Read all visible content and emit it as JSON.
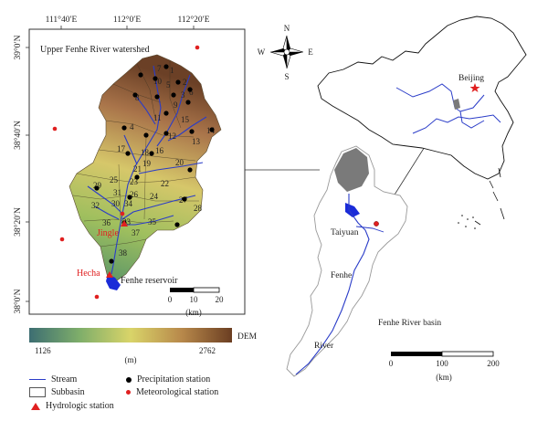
{
  "map": {
    "inset_title": "Upper Fenhe River watershed",
    "lon_ticks": [
      "111°40′E",
      "112°0′E",
      "112°20′E"
    ],
    "lat_ticks": [
      "39°0′N",
      "38°40′N",
      "38°20′N",
      "38°0′N"
    ],
    "subbasin_numbers": [
      "1",
      "2",
      "3",
      "4",
      "5",
      "6",
      "7",
      "8",
      "9",
      "10",
      "11",
      "12",
      "13",
      "14",
      "15",
      "16",
      "17",
      "18",
      "19",
      "20",
      "21",
      "22",
      "23",
      "24",
      "25",
      "26",
      "27",
      "28",
      "29",
      "30",
      "31",
      "32",
      "33",
      "34",
      "35",
      "36",
      "37",
      "38"
    ],
    "station_labels": {
      "jingle": "Jingle",
      "hecha": "Hecha",
      "reservoir": "Fenhe reservoir"
    },
    "scalebar_left": {
      "ticks": [
        "0",
        "10",
        "20"
      ],
      "unit": "(km)"
    },
    "dem": {
      "label": "DEM",
      "min": "1126",
      "max": "2762",
      "unit": "(m)"
    },
    "compass": {
      "n": "N",
      "s": "S",
      "e": "E",
      "w": "W"
    },
    "right_labels": {
      "beijing": "Beijing",
      "taiyuan": "Taiyuan",
      "fenhe": "Fenhe",
      "river": "River",
      "basin": "Fenhe River basin"
    },
    "scalebar_right": {
      "ticks": [
        "0",
        "100",
        "200"
      ],
      "unit": "(km)"
    },
    "colors": {
      "stream": "#2a3cc8",
      "reservoir": "#1a2bd8",
      "precip": "#000000",
      "meteo": "#e02020",
      "hydro": "#e02020",
      "shade": "#7a7a7a"
    }
  },
  "legend": {
    "stream": "Stream",
    "subbasin": "Subbasin",
    "hydrologic": "Hydrologic station",
    "precipitation": "Precipitation station",
    "meteorological": "Meteorological station"
  }
}
